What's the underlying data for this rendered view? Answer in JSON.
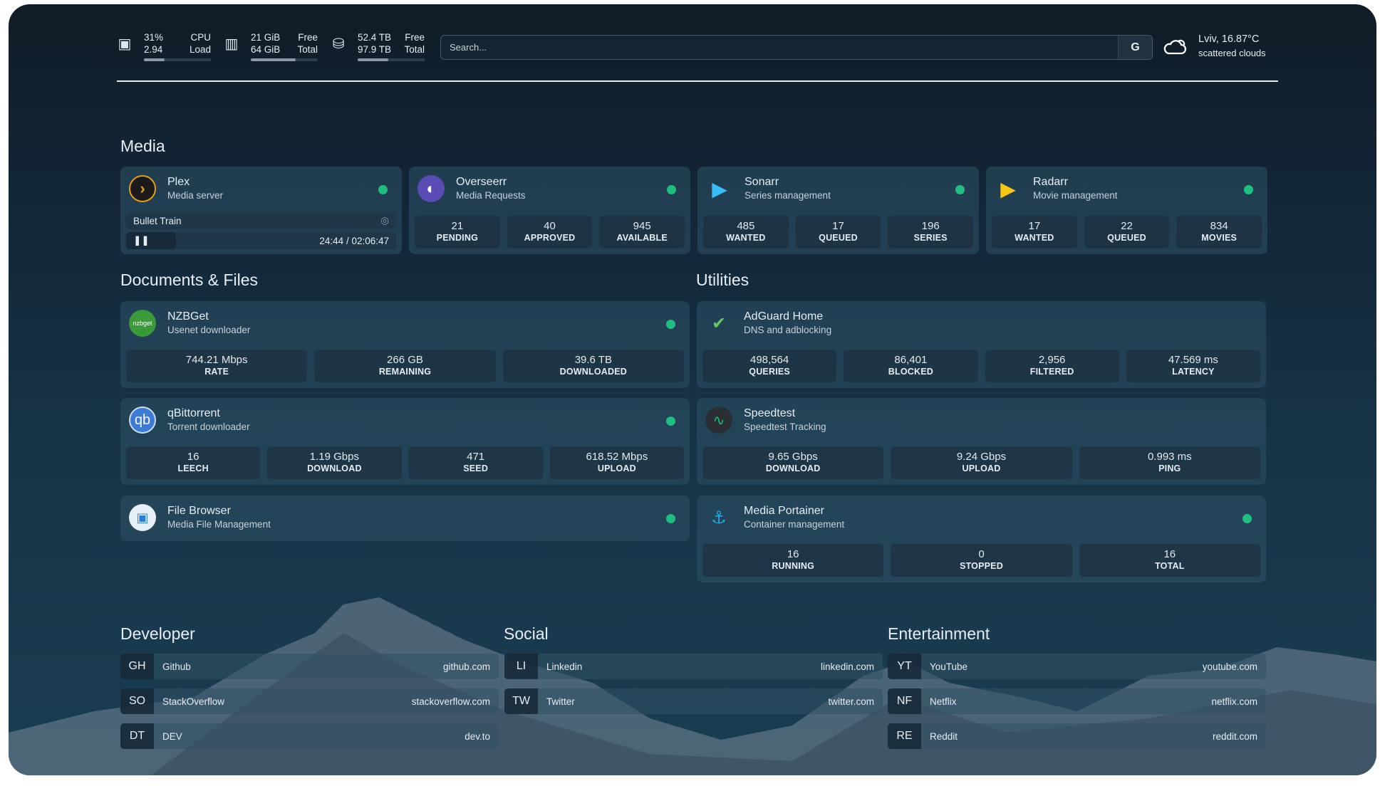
{
  "topbar": {
    "cpu": {
      "icon": "cpu-icon",
      "value1": "31%",
      "value2": "2.94",
      "label1": "CPU",
      "label2": "Load",
      "usage_percent": 31
    },
    "memory": {
      "icon": "memory-icon",
      "value1": "21 GiB",
      "value2": "64 GiB",
      "label1": "Free",
      "label2": "Total",
      "usage_percent": 67
    },
    "disk": {
      "icon": "disk-icon",
      "value1": "52.4 TB",
      "value2": "97.9 TB",
      "label1": "Free",
      "label2": "Total",
      "usage_percent": 46
    },
    "search": {
      "placeholder": "Search...",
      "button": "G"
    },
    "weather": {
      "icon": "cloud-sun-icon",
      "location_temp": "Lviv, 16.87°C",
      "condition": "scattered clouds"
    }
  },
  "sections": {
    "media": "Media",
    "docs": "Documents & Files",
    "utilities": "Utilities",
    "developer": "Developer",
    "social": "Social",
    "entertainment": "Entertainment"
  },
  "media": [
    {
      "name": "Plex",
      "sub": "Media server",
      "status": "online",
      "now_playing": {
        "title": "Bullet Train",
        "time": "24:44 / 02:06:47",
        "progress_percent": 19
      }
    },
    {
      "name": "Overseerr",
      "sub": "Media Requests",
      "status": "online",
      "stats": [
        {
          "v": "21",
          "l": "PENDING"
        },
        {
          "v": "40",
          "l": "APPROVED"
        },
        {
          "v": "945",
          "l": "AVAILABLE"
        }
      ]
    },
    {
      "name": "Sonarr",
      "sub": "Series management",
      "status": "online",
      "stats": [
        {
          "v": "485",
          "l": "WANTED"
        },
        {
          "v": "17",
          "l": "QUEUED"
        },
        {
          "v": "196",
          "l": "SERIES"
        }
      ]
    },
    {
      "name": "Radarr",
      "sub": "Movie management",
      "status": "online",
      "stats": [
        {
          "v": "17",
          "l": "WANTED"
        },
        {
          "v": "22",
          "l": "QUEUED"
        },
        {
          "v": "834",
          "l": "MOVIES"
        }
      ]
    }
  ],
  "docs": [
    {
      "name": "NZBGet",
      "sub": "Usenet downloader",
      "logo_text": "nzbget",
      "status": "online",
      "stats": [
        {
          "v": "744.21 Mbps",
          "l": "RATE"
        },
        {
          "v": "266 GB",
          "l": "REMAINING"
        },
        {
          "v": "39.6 TB",
          "l": "DOWNLOADED"
        }
      ]
    },
    {
      "name": "qBittorrent",
      "sub": "Torrent downloader",
      "logo_text": "qb",
      "status": "online",
      "stats": [
        {
          "v": "16",
          "l": "LEECH"
        },
        {
          "v": "1.19 Gbps",
          "l": "DOWNLOAD"
        },
        {
          "v": "471",
          "l": "SEED"
        },
        {
          "v": "618.52 Mbps",
          "l": "UPLOAD"
        }
      ]
    },
    {
      "name": "File Browser",
      "sub": "Media File Management",
      "status": "online"
    }
  ],
  "utilities": [
    {
      "name": "AdGuard Home",
      "sub": "DNS and adblocking",
      "stats": [
        {
          "v": "498,564",
          "l": "QUERIES"
        },
        {
          "v": "86,401",
          "l": "BLOCKED"
        },
        {
          "v": "2,956",
          "l": "FILTERED"
        },
        {
          "v": "47.569 ms",
          "l": "LATENCY"
        }
      ]
    },
    {
      "name": "Speedtest",
      "sub": "Speedtest Tracking",
      "stats": [
        {
          "v": "9.65 Gbps",
          "l": "DOWNLOAD"
        },
        {
          "v": "9.24 Gbps",
          "l": "UPLOAD"
        },
        {
          "v": "0.993 ms",
          "l": "PING"
        }
      ]
    },
    {
      "name": "Media Portainer",
      "sub": "Container management",
      "status": "online",
      "stats": [
        {
          "v": "16",
          "l": "RUNNING"
        },
        {
          "v": "0",
          "l": "STOPPED"
        },
        {
          "v": "16",
          "l": "TOTAL"
        }
      ]
    }
  ],
  "bookmarks": {
    "developer": [
      {
        "ab": "GH",
        "n": "Github",
        "u": "github.com"
      },
      {
        "ab": "SO",
        "n": "StackOverflow",
        "u": "stackoverflow.com"
      },
      {
        "ab": "DT",
        "n": "DEV",
        "u": "dev.to"
      }
    ],
    "social": [
      {
        "ab": "LI",
        "n": "Linkedin",
        "u": "linkedin.com"
      },
      {
        "ab": "TW",
        "n": "Twitter",
        "u": "twitter.com"
      }
    ],
    "entertainment": [
      {
        "ab": "YT",
        "n": "YouTube",
        "u": "youtube.com"
      },
      {
        "ab": "NF",
        "n": "Netflix",
        "u": "netflix.com"
      },
      {
        "ab": "RE",
        "n": "Reddit",
        "u": "reddit.com"
      }
    ]
  },
  "colors": {
    "status_online": "#1fbf80",
    "accent_plex": "#e5a00d"
  }
}
